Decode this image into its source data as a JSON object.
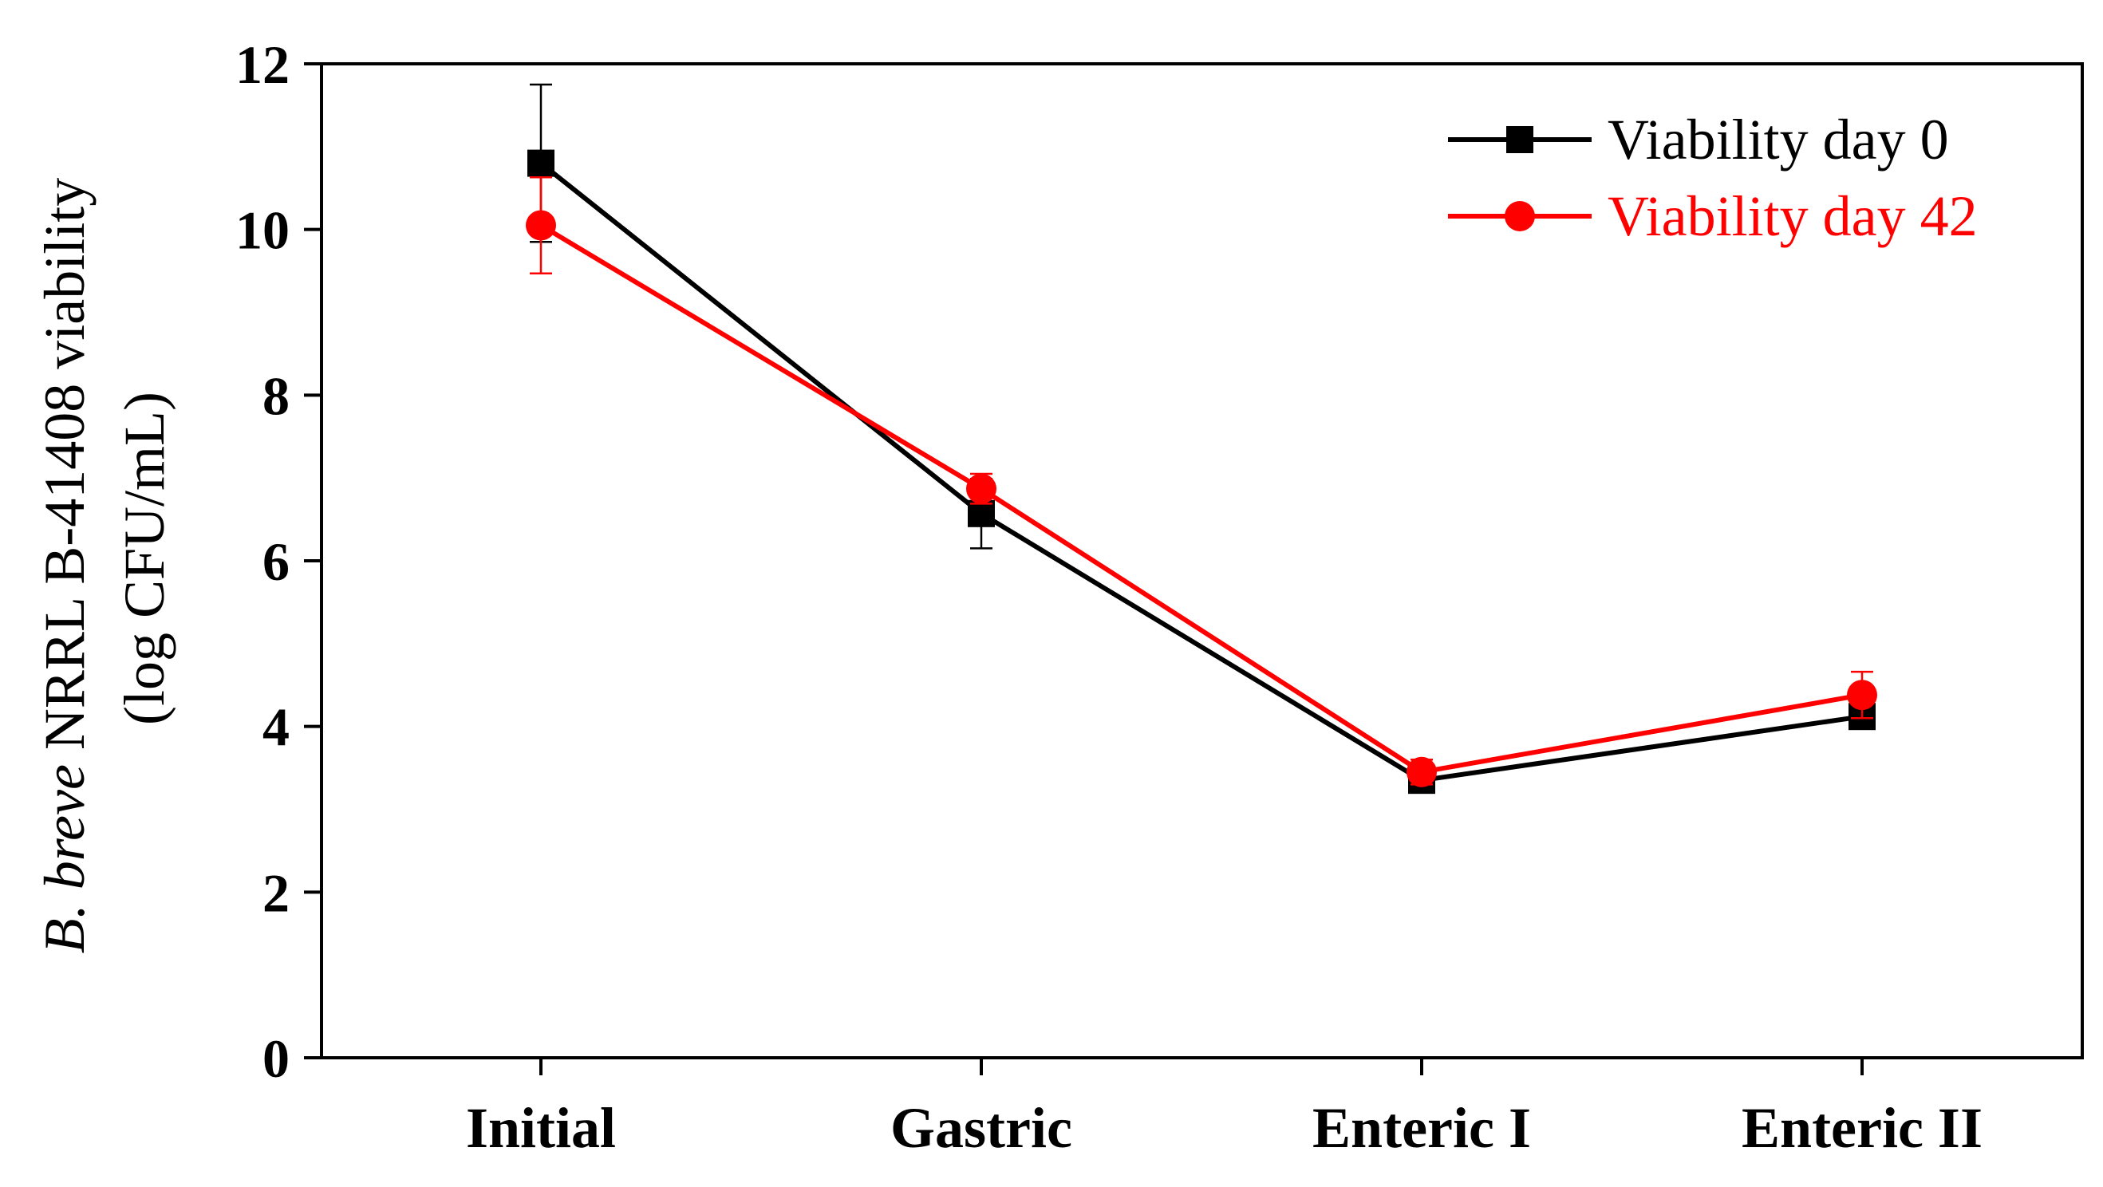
{
  "chart_data": {
    "type": "line",
    "categories": [
      "Initial",
      "Gastric",
      "Enteric I",
      "Enteric II"
    ],
    "ylabel": {
      "line1_italic": "B. breve",
      "line1_rest": " NRRL B-41408 viability",
      "line2": "(log CFU/mL)"
    },
    "ylim": [
      0,
      12
    ],
    "yticks": [
      "0",
      "2",
      "4",
      "6",
      "8",
      "10",
      "12"
    ],
    "ytick_values": [
      0,
      2,
      4,
      6,
      8,
      10,
      12
    ],
    "grid": false,
    "legend_position": "top-right",
    "series": [
      {
        "name": "Viability day 0",
        "color": "#000000",
        "marker": "square",
        "values": [
          10.8,
          6.57,
          3.35,
          4.12
        ],
        "errors": [
          0.95,
          0.42,
          0.15,
          0.1
        ]
      },
      {
        "name": "Viability day 42",
        "color": "#ff0000",
        "marker": "circle",
        "values": [
          10.05,
          6.87,
          3.45,
          4.38
        ],
        "errors": [
          0.58,
          0.18,
          0.15,
          0.28
        ]
      }
    ]
  }
}
